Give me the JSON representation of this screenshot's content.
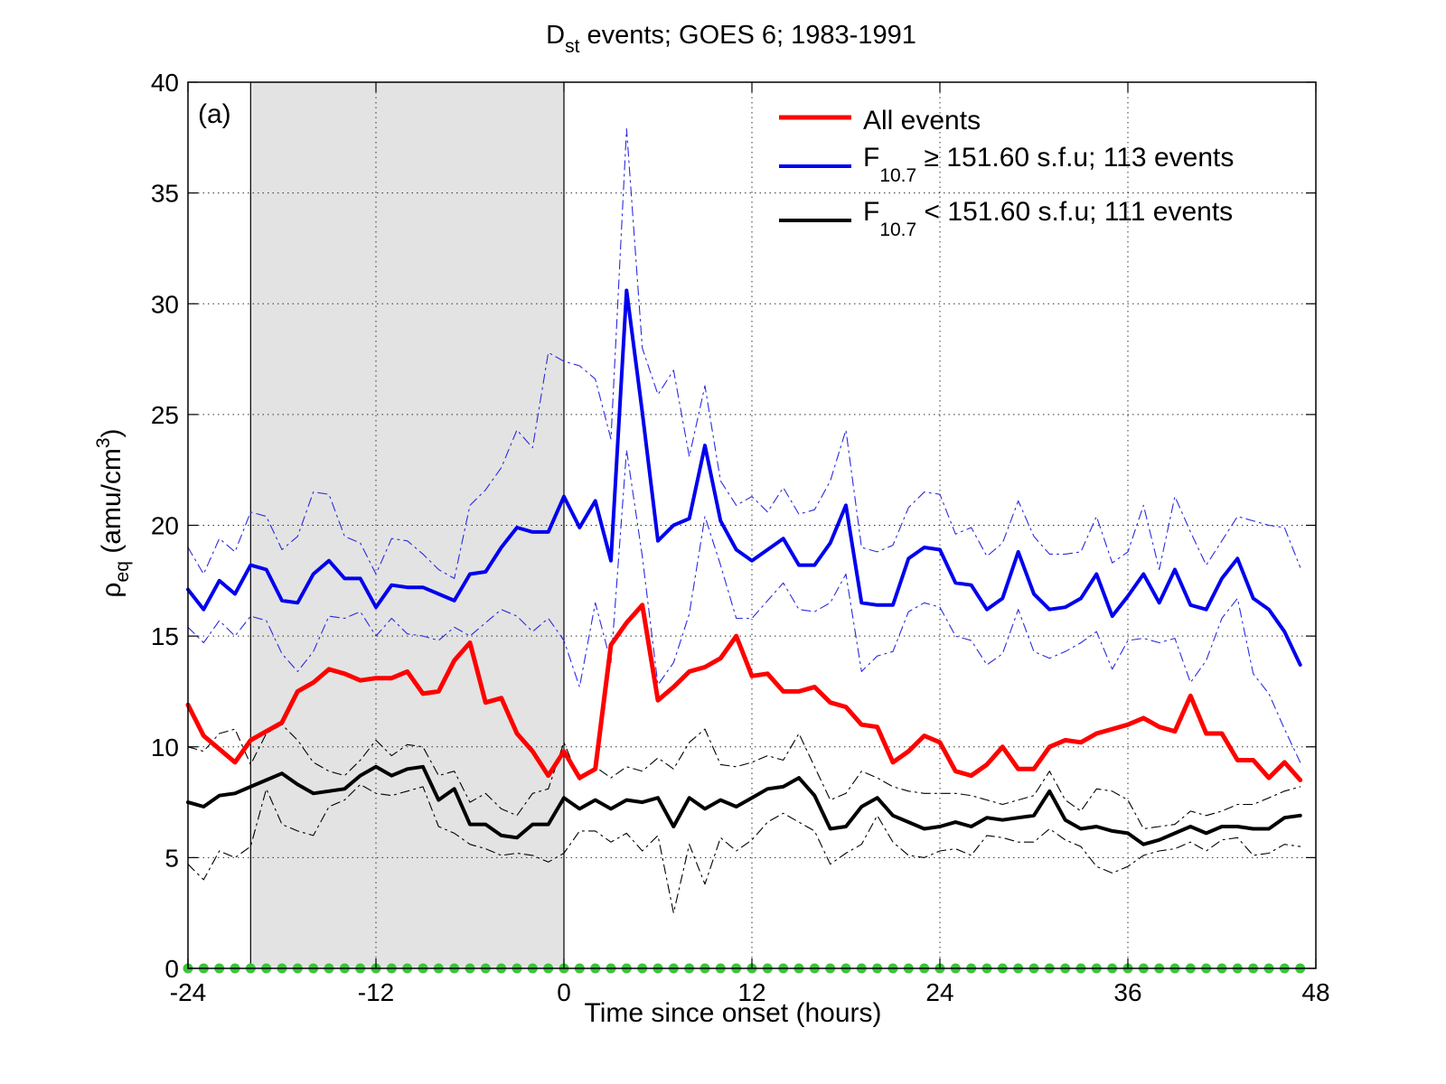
{
  "chart_data": {
    "type": "line",
    "title": {
      "main": "D",
      "sub": "st",
      "rest": " events; GOES 6; 1983-1991"
    },
    "panel_label": "(a)",
    "xlabel": "Time since onset (hours)",
    "ylabel": {
      "main": "ρ",
      "sub": "eq",
      "rest": " (amu/cm",
      "sup": "3",
      "close": ")"
    },
    "xlim": [
      -24,
      48
    ],
    "ylim": [
      0,
      40
    ],
    "xticks": [
      -24,
      -12,
      0,
      12,
      24,
      36,
      48
    ],
    "xtick_labels": [
      "-24",
      "-12",
      "0",
      "12",
      "24",
      "36",
      "48"
    ],
    "yticks": [
      0,
      5,
      10,
      15,
      20,
      25,
      30,
      35,
      40
    ],
    "ytick_labels": [
      "0",
      "5",
      "10",
      "15",
      "20",
      "25",
      "30",
      "35",
      "40"
    ],
    "grid": true,
    "shaded_interval": {
      "x": [
        -20,
        0
      ],
      "color": "#e3e3e3"
    },
    "legend": {
      "placement": "top-right",
      "entries": [
        {
          "series": "all",
          "color": "#ff0000",
          "text": "All events"
        },
        {
          "series": "high",
          "color": "#0000ee",
          "main": "F",
          "sub": "10.7",
          "rest": " ≥ 151.60 s.f.u; 113 events"
        },
        {
          "series": "low",
          "color": "#000000",
          "main": "F",
          "sub": "10.7",
          "rest": " < 151.60 s.f.u; 111 events"
        }
      ]
    },
    "x": [
      -24,
      -23,
      -22,
      -21,
      -20,
      -19,
      -18,
      -17,
      -16,
      -15,
      -14,
      -13,
      -12,
      -11,
      -10,
      -9,
      -8,
      -7,
      -6,
      -5,
      -4,
      -3,
      -2,
      -1,
      0,
      1,
      2,
      3,
      4,
      5,
      6,
      7,
      8,
      9,
      10,
      11,
      12,
      13,
      14,
      15,
      16,
      17,
      18,
      19,
      20,
      21,
      22,
      23,
      24,
      25,
      26,
      27,
      28,
      29,
      30,
      31,
      32,
      33,
      34,
      35,
      36,
      37,
      38,
      39,
      40,
      41,
      42,
      43,
      44,
      45,
      46,
      47
    ],
    "series": [
      {
        "id": "all",
        "color": "#ff0000",
        "width": 5,
        "values": [
          11.9,
          10.5,
          9.9,
          9.3,
          10.3,
          10.7,
          11.1,
          12.5,
          12.9,
          13.5,
          13.3,
          13.0,
          13.1,
          13.1,
          13.4,
          12.4,
          12.5,
          13.9,
          14.7,
          12.0,
          12.2,
          10.6,
          9.8,
          8.7,
          9.8,
          8.6,
          9.0,
          14.6,
          15.6,
          16.4,
          12.1,
          12.7,
          13.4,
          13.6,
          14.0,
          15.0,
          13.2,
          13.3,
          12.5,
          12.5,
          12.7,
          12.0,
          11.8,
          11.0,
          10.9,
          9.3,
          9.8,
          10.5,
          10.2,
          8.9,
          8.7,
          9.2,
          10.0,
          9.0,
          9.0,
          10.0,
          10.3,
          10.2,
          10.6,
          10.8,
          11.0,
          11.3,
          10.9,
          10.7,
          12.3,
          10.6,
          10.6,
          9.4,
          9.4,
          8.6,
          9.3,
          8.5
        ]
      },
      {
        "id": "high",
        "color": "#0000ee",
        "width": 4,
        "values": [
          17.1,
          16.2,
          17.5,
          16.9,
          18.2,
          18.0,
          16.6,
          16.5,
          17.8,
          18.4,
          17.6,
          17.6,
          16.3,
          17.3,
          17.2,
          17.2,
          16.9,
          16.6,
          17.8,
          17.9,
          19.0,
          19.9,
          19.7,
          19.7,
          21.3,
          19.9,
          21.1,
          18.4,
          30.6,
          25.1,
          19.3,
          20.0,
          20.3,
          23.6,
          20.2,
          18.9,
          18.4,
          18.9,
          19.4,
          18.2,
          18.2,
          19.2,
          20.9,
          16.5,
          16.4,
          16.4,
          18.5,
          19.0,
          18.9,
          17.4,
          17.3,
          16.2,
          16.7,
          18.8,
          16.9,
          16.2,
          16.3,
          16.7,
          17.8,
          15.9,
          16.8,
          17.8,
          16.5,
          18.0,
          16.4,
          16.2,
          17.6,
          18.5,
          16.7,
          16.2,
          15.2,
          13.7
        ]
      },
      {
        "id": "low",
        "color": "#000000",
        "width": 4,
        "values": [
          7.5,
          7.3,
          7.8,
          7.9,
          8.2,
          8.5,
          8.8,
          8.3,
          7.9,
          8.0,
          8.1,
          8.7,
          9.1,
          8.7,
          9.0,
          9.1,
          7.6,
          8.1,
          6.5,
          6.5,
          6.0,
          5.9,
          6.5,
          6.5,
          7.7,
          7.2,
          7.6,
          7.2,
          7.6,
          7.5,
          7.7,
          6.4,
          7.7,
          7.2,
          7.6,
          7.3,
          7.7,
          8.1,
          8.2,
          8.6,
          7.8,
          6.3,
          6.4,
          7.3,
          7.7,
          6.9,
          6.6,
          6.3,
          6.4,
          6.6,
          6.4,
          6.8,
          6.7,
          6.8,
          6.9,
          8.0,
          6.7,
          6.3,
          6.4,
          6.2,
          6.1,
          5.6,
          5.8,
          6.1,
          6.4,
          6.1,
          6.4,
          6.4,
          6.3,
          6.3,
          6.8,
          6.9
        ]
      },
      {
        "id": "high-upper",
        "color": "#2a2ae0",
        "width": 1.1,
        "dash": true,
        "values": [
          19.0,
          17.8,
          19.4,
          18.8,
          20.6,
          20.4,
          18.9,
          19.5,
          21.5,
          21.4,
          19.5,
          19.2,
          17.8,
          19.4,
          19.3,
          18.7,
          18.0,
          17.6,
          20.9,
          21.6,
          22.6,
          24.3,
          23.5,
          27.8,
          27.4,
          27.2,
          26.6,
          23.9,
          37.9,
          28.0,
          25.9,
          27.0,
          23.1,
          26.3,
          22.0,
          20.9,
          21.3,
          20.6,
          21.7,
          20.5,
          20.7,
          22.0,
          24.3,
          19.0,
          18.8,
          19.1,
          20.8,
          21.5,
          21.4,
          19.6,
          19.9,
          18.6,
          19.2,
          21.1,
          19.5,
          18.7,
          18.7,
          18.8,
          20.4,
          18.3,
          18.8,
          20.9,
          18.0,
          21.3,
          19.7,
          18.2,
          19.3,
          20.4,
          20.2,
          20.0,
          19.9,
          18.1
        ]
      },
      {
        "id": "high-lower",
        "color": "#2a2ae0",
        "width": 1.1,
        "dash": true,
        "values": [
          15.4,
          14.7,
          15.7,
          15.0,
          15.9,
          15.7,
          14.2,
          13.4,
          14.3,
          15.9,
          15.8,
          16.1,
          15.0,
          15.8,
          15.1,
          15.0,
          14.8,
          15.4,
          15.0,
          15.6,
          16.2,
          15.9,
          15.2,
          15.8,
          14.8,
          12.7,
          16.5,
          13.8,
          23.4,
          18.6,
          12.8,
          13.8,
          16.0,
          20.4,
          18.2,
          15.8,
          15.8,
          16.6,
          17.4,
          16.2,
          16.1,
          16.5,
          17.8,
          13.4,
          14.1,
          14.3,
          16.1,
          16.5,
          16.3,
          15.0,
          14.8,
          13.7,
          14.2,
          16.2,
          14.3,
          14.0,
          14.3,
          14.7,
          15.2,
          13.5,
          14.8,
          14.9,
          14.7,
          14.9,
          12.9,
          13.9,
          15.8,
          16.7,
          13.3,
          12.4,
          10.8,
          9.3
        ]
      },
      {
        "id": "low-upper",
        "color": "#000000",
        "width": 1.1,
        "dash": true,
        "values": [
          10.0,
          9.8,
          10.6,
          10.8,
          9.2,
          10.6,
          11.0,
          10.3,
          9.3,
          8.9,
          8.7,
          9.4,
          10.3,
          9.6,
          10.1,
          10.0,
          8.7,
          8.9,
          7.5,
          7.9,
          7.2,
          6.9,
          7.9,
          8.1,
          10.2,
          8.5,
          9.1,
          8.6,
          9.1,
          8.9,
          9.5,
          9.0,
          10.2,
          10.8,
          9.2,
          9.1,
          9.3,
          9.6,
          9.4,
          10.6,
          9.1,
          7.6,
          7.9,
          8.9,
          8.6,
          8.2,
          8.0,
          7.9,
          7.9,
          7.9,
          7.8,
          7.6,
          7.4,
          7.6,
          7.8,
          8.9,
          7.6,
          7.1,
          8.1,
          8.0,
          7.6,
          6.3,
          6.4,
          6.5,
          7.1,
          6.9,
          7.1,
          7.4,
          7.4,
          7.7,
          8.0,
          8.2
        ]
      },
      {
        "id": "low-lower",
        "color": "#000000",
        "width": 1.1,
        "dash": true,
        "values": [
          4.7,
          4.0,
          5.3,
          5.0,
          5.5,
          8.1,
          6.5,
          6.2,
          6.0,
          7.3,
          7.6,
          8.3,
          7.9,
          7.8,
          8.0,
          8.2,
          6.4,
          6.1,
          5.6,
          5.4,
          5.1,
          5.2,
          5.1,
          4.8,
          5.2,
          6.2,
          6.2,
          5.7,
          6.1,
          5.3,
          6.0,
          2.5,
          5.6,
          3.8,
          5.9,
          5.3,
          5.8,
          6.6,
          7.0,
          6.6,
          6.2,
          4.7,
          5.2,
          5.6,
          6.9,
          5.7,
          5.1,
          5.0,
          5.3,
          5.4,
          5.1,
          6.0,
          5.9,
          5.7,
          5.7,
          6.3,
          5.8,
          5.5,
          4.6,
          4.3,
          4.6,
          5.1,
          5.3,
          5.4,
          5.7,
          5.3,
          5.8,
          5.9,
          5.1,
          5.2,
          5.6,
          5.5
        ]
      },
      {
        "id": "baseline",
        "color": "#3cc43c",
        "type": "scatter",
        "values_constant": 0
      }
    ]
  }
}
